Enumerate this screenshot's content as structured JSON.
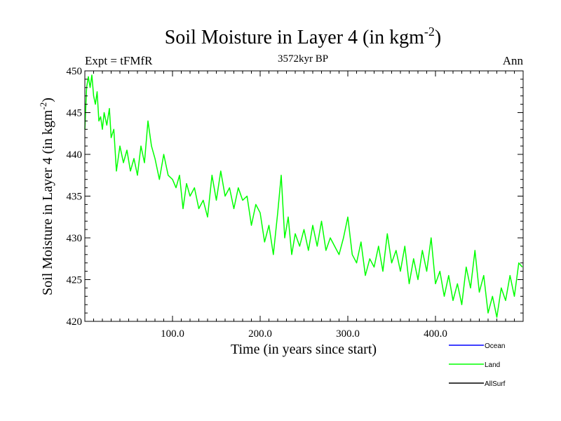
{
  "chart_data": {
    "type": "line",
    "title": "Soil Moisture in Layer 4 (in kgm",
    "title_sup": "-2",
    "title_close": ")",
    "left_label": "Expt = tFMfR",
    "center_label": "3572kyr BP",
    "right_label": "Ann",
    "xlabel": "Time (in years since start)",
    "ylabel": "Soil Moisture in Layer 4 (in kgm",
    "ylabel_sup": "-2",
    "ylabel_close": ")",
    "xlim": [
      0,
      500
    ],
    "ylim": [
      420,
      450
    ],
    "xticks": [
      100,
      200,
      300,
      400
    ],
    "xtick_labels": [
      "100.0",
      "200.0",
      "300.0",
      "400.0"
    ],
    "yticks": [
      420,
      425,
      430,
      435,
      440,
      445,
      450
    ],
    "ytick_labels": [
      "420",
      "425",
      "430",
      "435",
      "440",
      "445",
      "450"
    ],
    "legend": [
      {
        "name": "Ocean",
        "color": "#0000ff"
      },
      {
        "name": "Land",
        "color": "#00ff00"
      },
      {
        "name": "AllSurf",
        "color": "#000000"
      }
    ],
    "series": [
      {
        "name": "Land",
        "color": "#00ff00",
        "x": [
          0,
          2,
          4,
          6,
          8,
          10,
          12,
          14,
          16,
          18,
          20,
          22,
          25,
          28,
          30,
          33,
          36,
          40,
          44,
          48,
          52,
          56,
          60,
          64,
          68,
          72,
          76,
          80,
          85,
          90,
          95,
          100,
          104,
          108,
          112,
          116,
          120,
          125,
          130,
          135,
          140,
          145,
          150,
          155,
          160,
          165,
          170,
          175,
          180,
          185,
          190,
          195,
          200,
          205,
          210,
          215,
          220,
          224,
          228,
          232,
          236,
          240,
          245,
          250,
          255,
          260,
          265,
          270,
          275,
          280,
          285,
          290,
          295,
          300,
          305,
          310,
          315,
          320,
          325,
          330,
          335,
          340,
          345,
          350,
          355,
          360,
          365,
          370,
          375,
          380,
          385,
          390,
          395,
          400,
          405,
          410,
          415,
          420,
          425,
          430,
          435,
          440,
          445,
          450,
          455,
          460,
          465,
          470,
          475,
          480,
          485,
          490,
          495,
          499
        ],
        "values": [
          443.0,
          448.0,
          449.3,
          448.0,
          449.5,
          447.0,
          446.0,
          447.5,
          444.0,
          444.5,
          443.0,
          445.0,
          443.5,
          445.5,
          442.0,
          443.0,
          438.0,
          441.0,
          439.0,
          440.5,
          438.0,
          439.5,
          437.5,
          441.0,
          439.0,
          444.0,
          441.0,
          439.5,
          437.0,
          440.0,
          437.5,
          437.0,
          436.0,
          437.5,
          433.5,
          436.5,
          435.0,
          436.0,
          433.5,
          434.5,
          432.5,
          437.5,
          434.5,
          438.0,
          435.0,
          436.0,
          433.5,
          436.0,
          434.5,
          435.0,
          431.5,
          434.0,
          433.0,
          429.5,
          431.5,
          428.0,
          433.0,
          437.5,
          430.0,
          432.5,
          428.0,
          430.5,
          429.0,
          431.0,
          428.5,
          431.5,
          429.0,
          432.0,
          428.5,
          430.0,
          429.0,
          428.0,
          430.0,
          432.5,
          428.0,
          427.0,
          429.5,
          425.5,
          427.5,
          426.5,
          429.0,
          426.0,
          430.5,
          427.0,
          428.5,
          426.0,
          429.0,
          424.5,
          427.5,
          425.0,
          428.5,
          426.0,
          430.0,
          424.5,
          426.0,
          423.0,
          425.5,
          422.5,
          424.5,
          422.0,
          426.5,
          424.0,
          428.5,
          423.5,
          425.5,
          421.0,
          423.0,
          420.5,
          424.0,
          422.5,
          425.5,
          423.0,
          427.0,
          426.5
        ]
      }
    ]
  }
}
